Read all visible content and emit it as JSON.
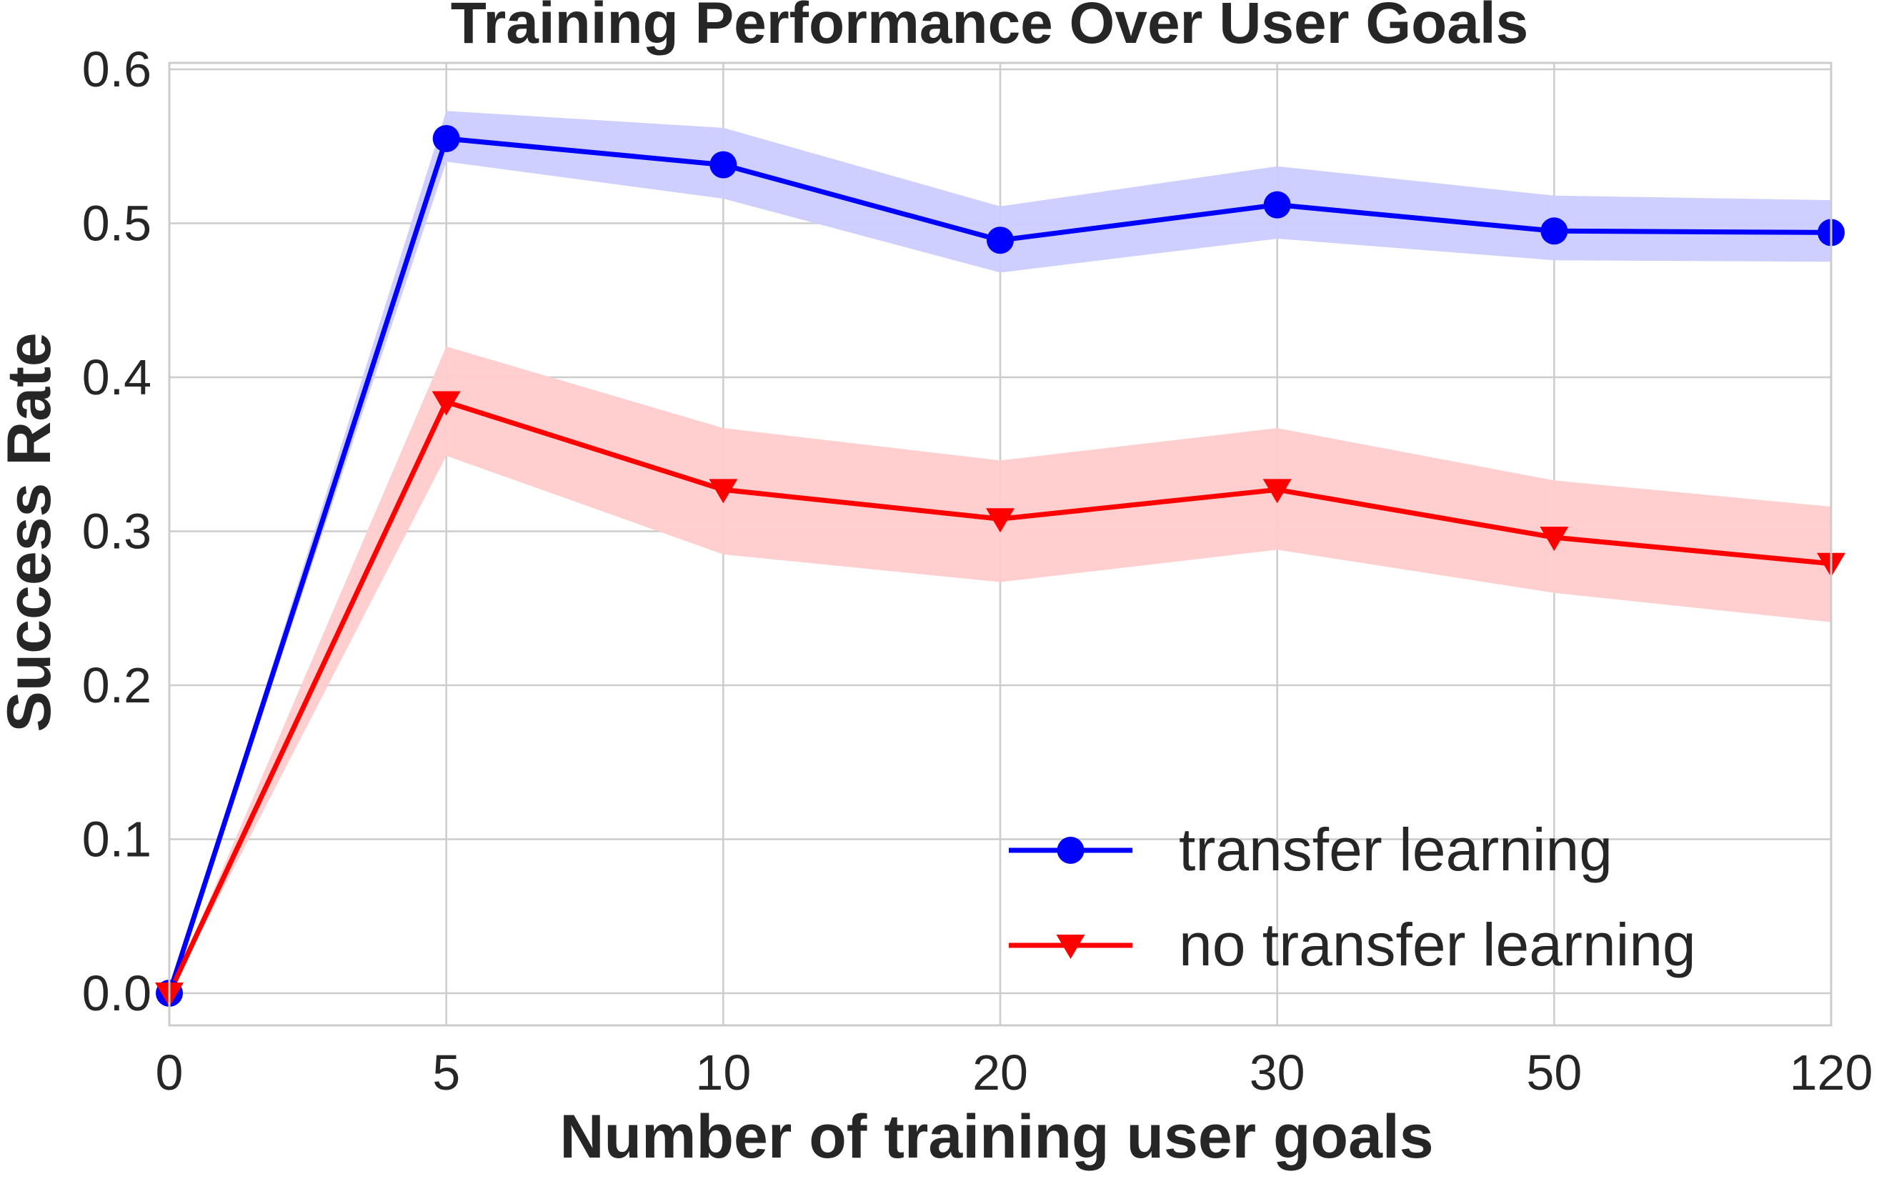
{
  "chart_data": {
    "type": "line",
    "title": "Training Performance Over User Goals",
    "xlabel": "Number of training user goals",
    "ylabel": "Success Rate",
    "categories": [
      "0",
      "5",
      "10",
      "20",
      "30",
      "50",
      "120"
    ],
    "yticks": [
      "0.0",
      "0.1",
      "0.2",
      "0.3",
      "0.4",
      "0.5",
      "0.6"
    ],
    "ylim": [
      0,
      0.6
    ],
    "grid": true,
    "legend_position": "lower-right",
    "series": [
      {
        "name": "transfer learning",
        "color": "#0000ff",
        "band_color": "#ccccff",
        "marker": "circle",
        "values": [
          0.0,
          0.555,
          0.538,
          0.489,
          0.512,
          0.495,
          0.494
        ],
        "lower": [
          0.0,
          0.54,
          0.516,
          0.468,
          0.49,
          0.476,
          0.475
        ],
        "upper": [
          0.0,
          0.573,
          0.562,
          0.511,
          0.537,
          0.518,
          0.515
        ]
      },
      {
        "name": "no transfer learning",
        "color": "#ff0000",
        "band_color": "#ffcccc",
        "marker": "triangle-down",
        "values": [
          0.0,
          0.384,
          0.327,
          0.308,
          0.327,
          0.296,
          0.279
        ],
        "lower": [
          0.0,
          0.349,
          0.285,
          0.267,
          0.288,
          0.26,
          0.241
        ],
        "upper": [
          0.0,
          0.42,
          0.367,
          0.346,
          0.367,
          0.333,
          0.316
        ]
      }
    ]
  }
}
